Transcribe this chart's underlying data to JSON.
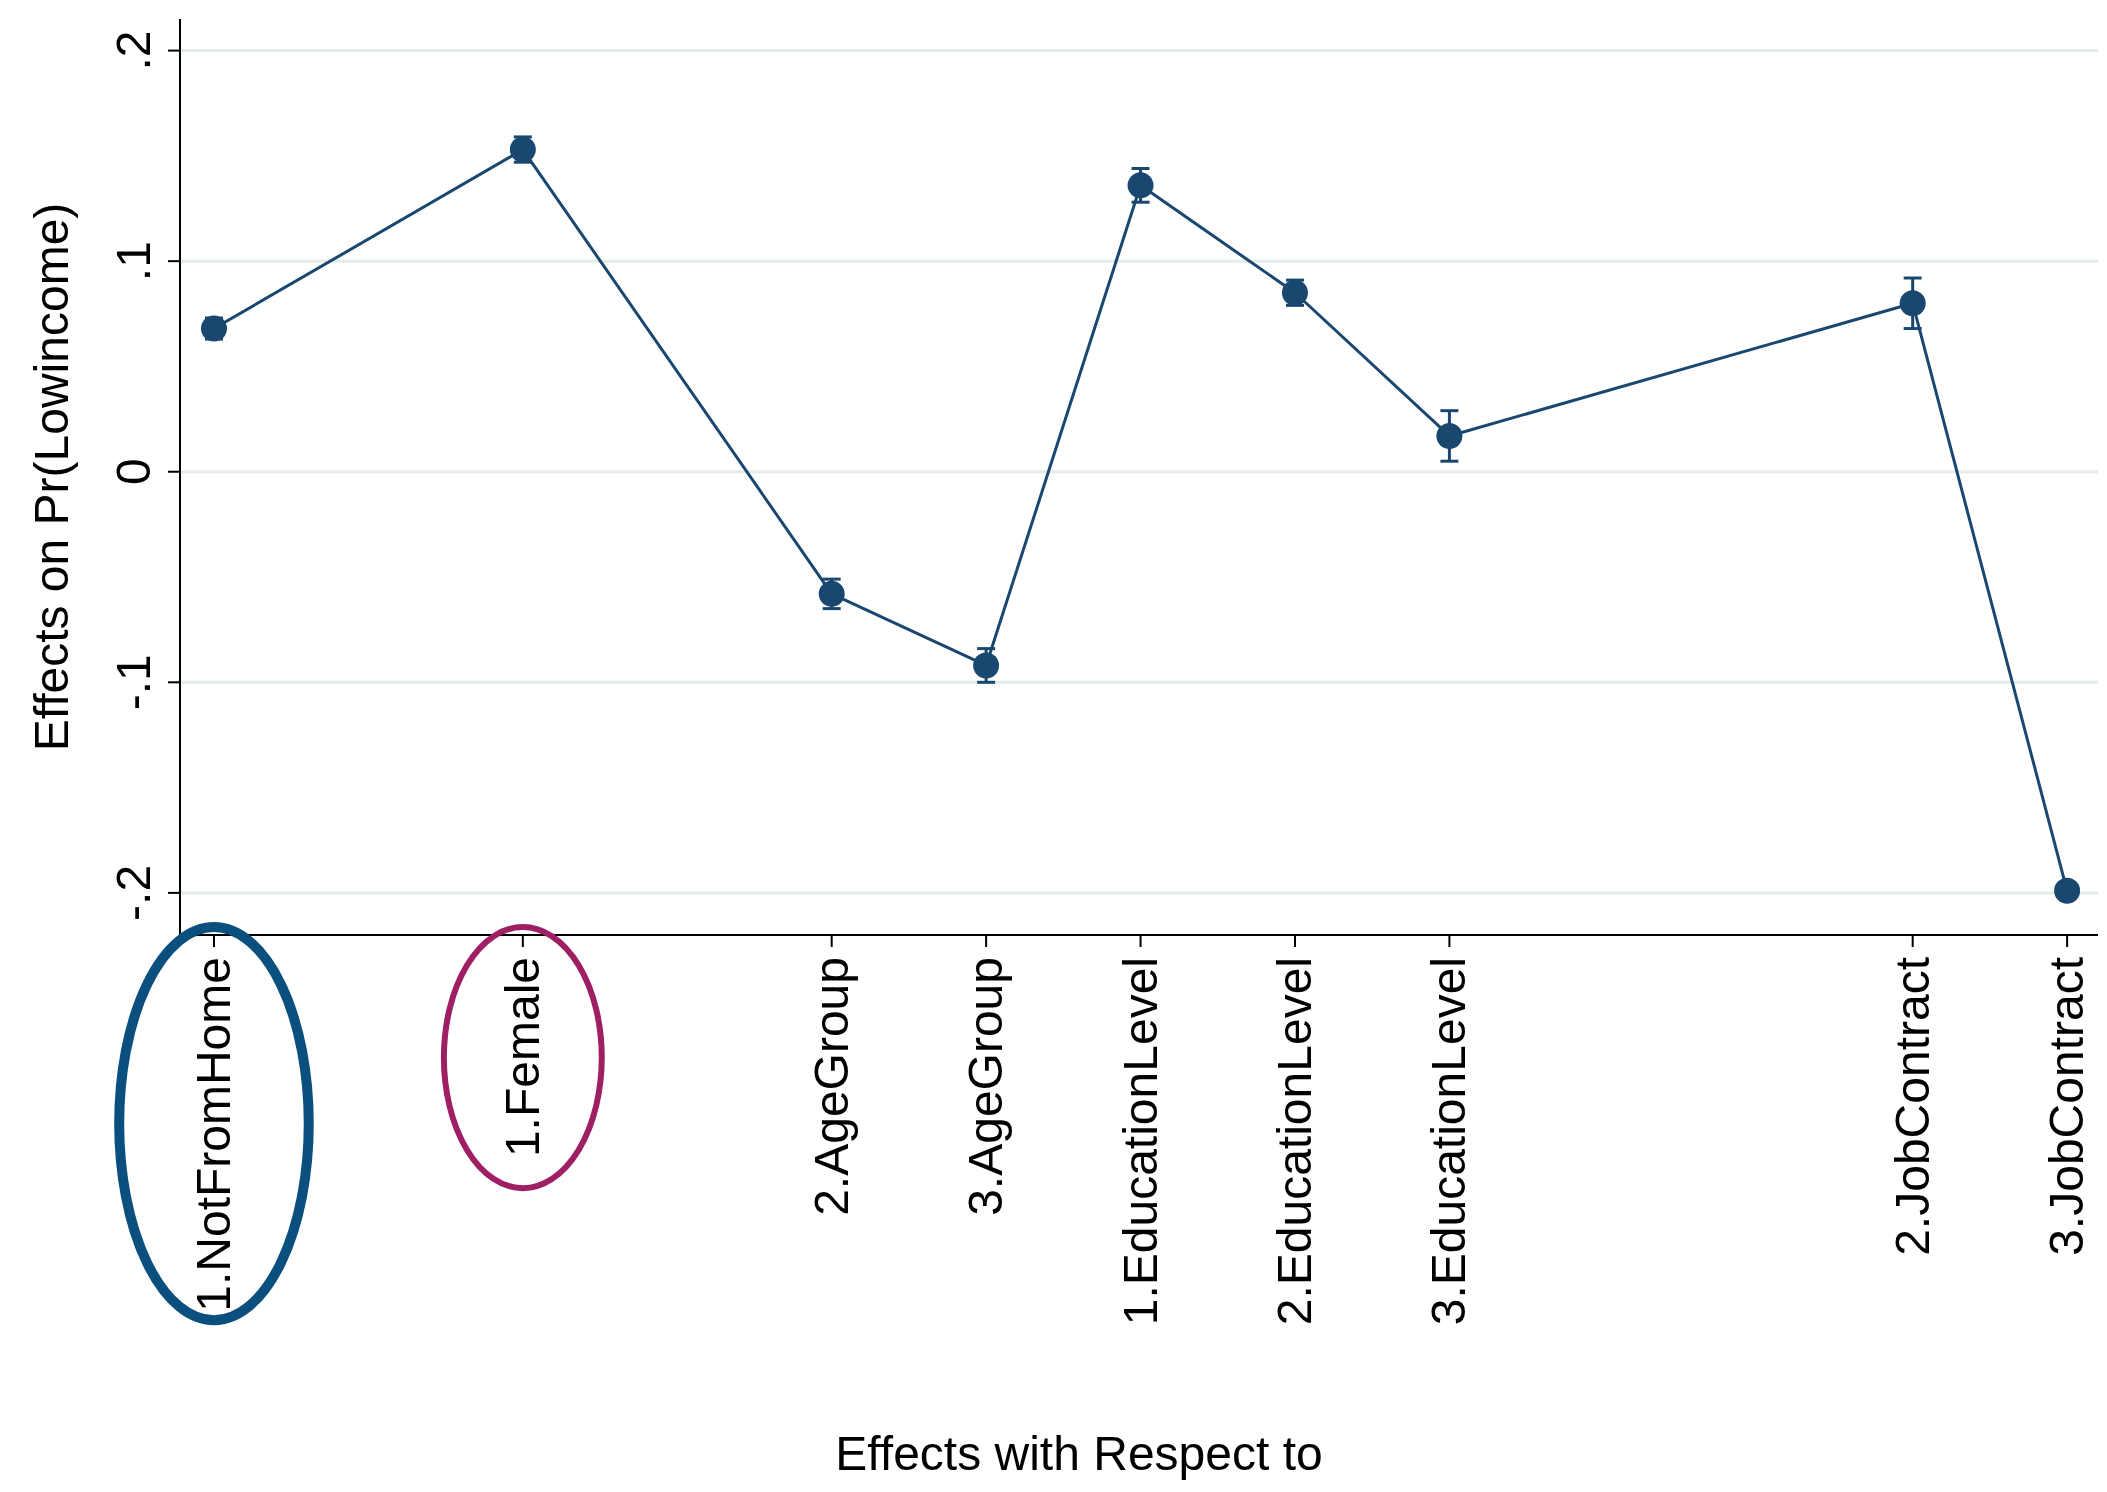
{
  "chart_data": {
    "type": "line",
    "xlabel": "Effects with Respect to",
    "ylabel": "Effects on Pr(Lowincome)",
    "categories": [
      "1.NotFromHome",
      null,
      "1.Female",
      null,
      "2.AgeGroup",
      "3.AgeGroup",
      "1.EducationLevel",
      "2.EducationLevel",
      "3.EducationLevel",
      null,
      null,
      "2.JobContract",
      "3.JobContract"
    ],
    "series": [
      {
        "color": "#1a476f",
        "values": [
          0.068,
          null,
          0.153,
          null,
          -0.058,
          -0.092,
          0.136,
          0.085,
          0.017,
          null,
          null,
          0.08,
          -0.199
        ],
        "errors": [
          0.005,
          null,
          0.006,
          null,
          0.007,
          0.008,
          0.008,
          0.006,
          0.012,
          null,
          null,
          0.012,
          0.003
        ]
      }
    ],
    "ylim": [
      -0.22,
      0.215
    ],
    "yticks": [
      {
        "value": -0.2,
        "label": "-.2"
      },
      {
        "value": -0.1,
        "label": "-.1"
      },
      0,
      {
        "value": 0.1,
        "label": ".1"
      },
      {
        "value": 0.2,
        "label": ".2"
      }
    ],
    "grid": "y",
    "marker": "circle",
    "line_style": "solid"
  }
}
